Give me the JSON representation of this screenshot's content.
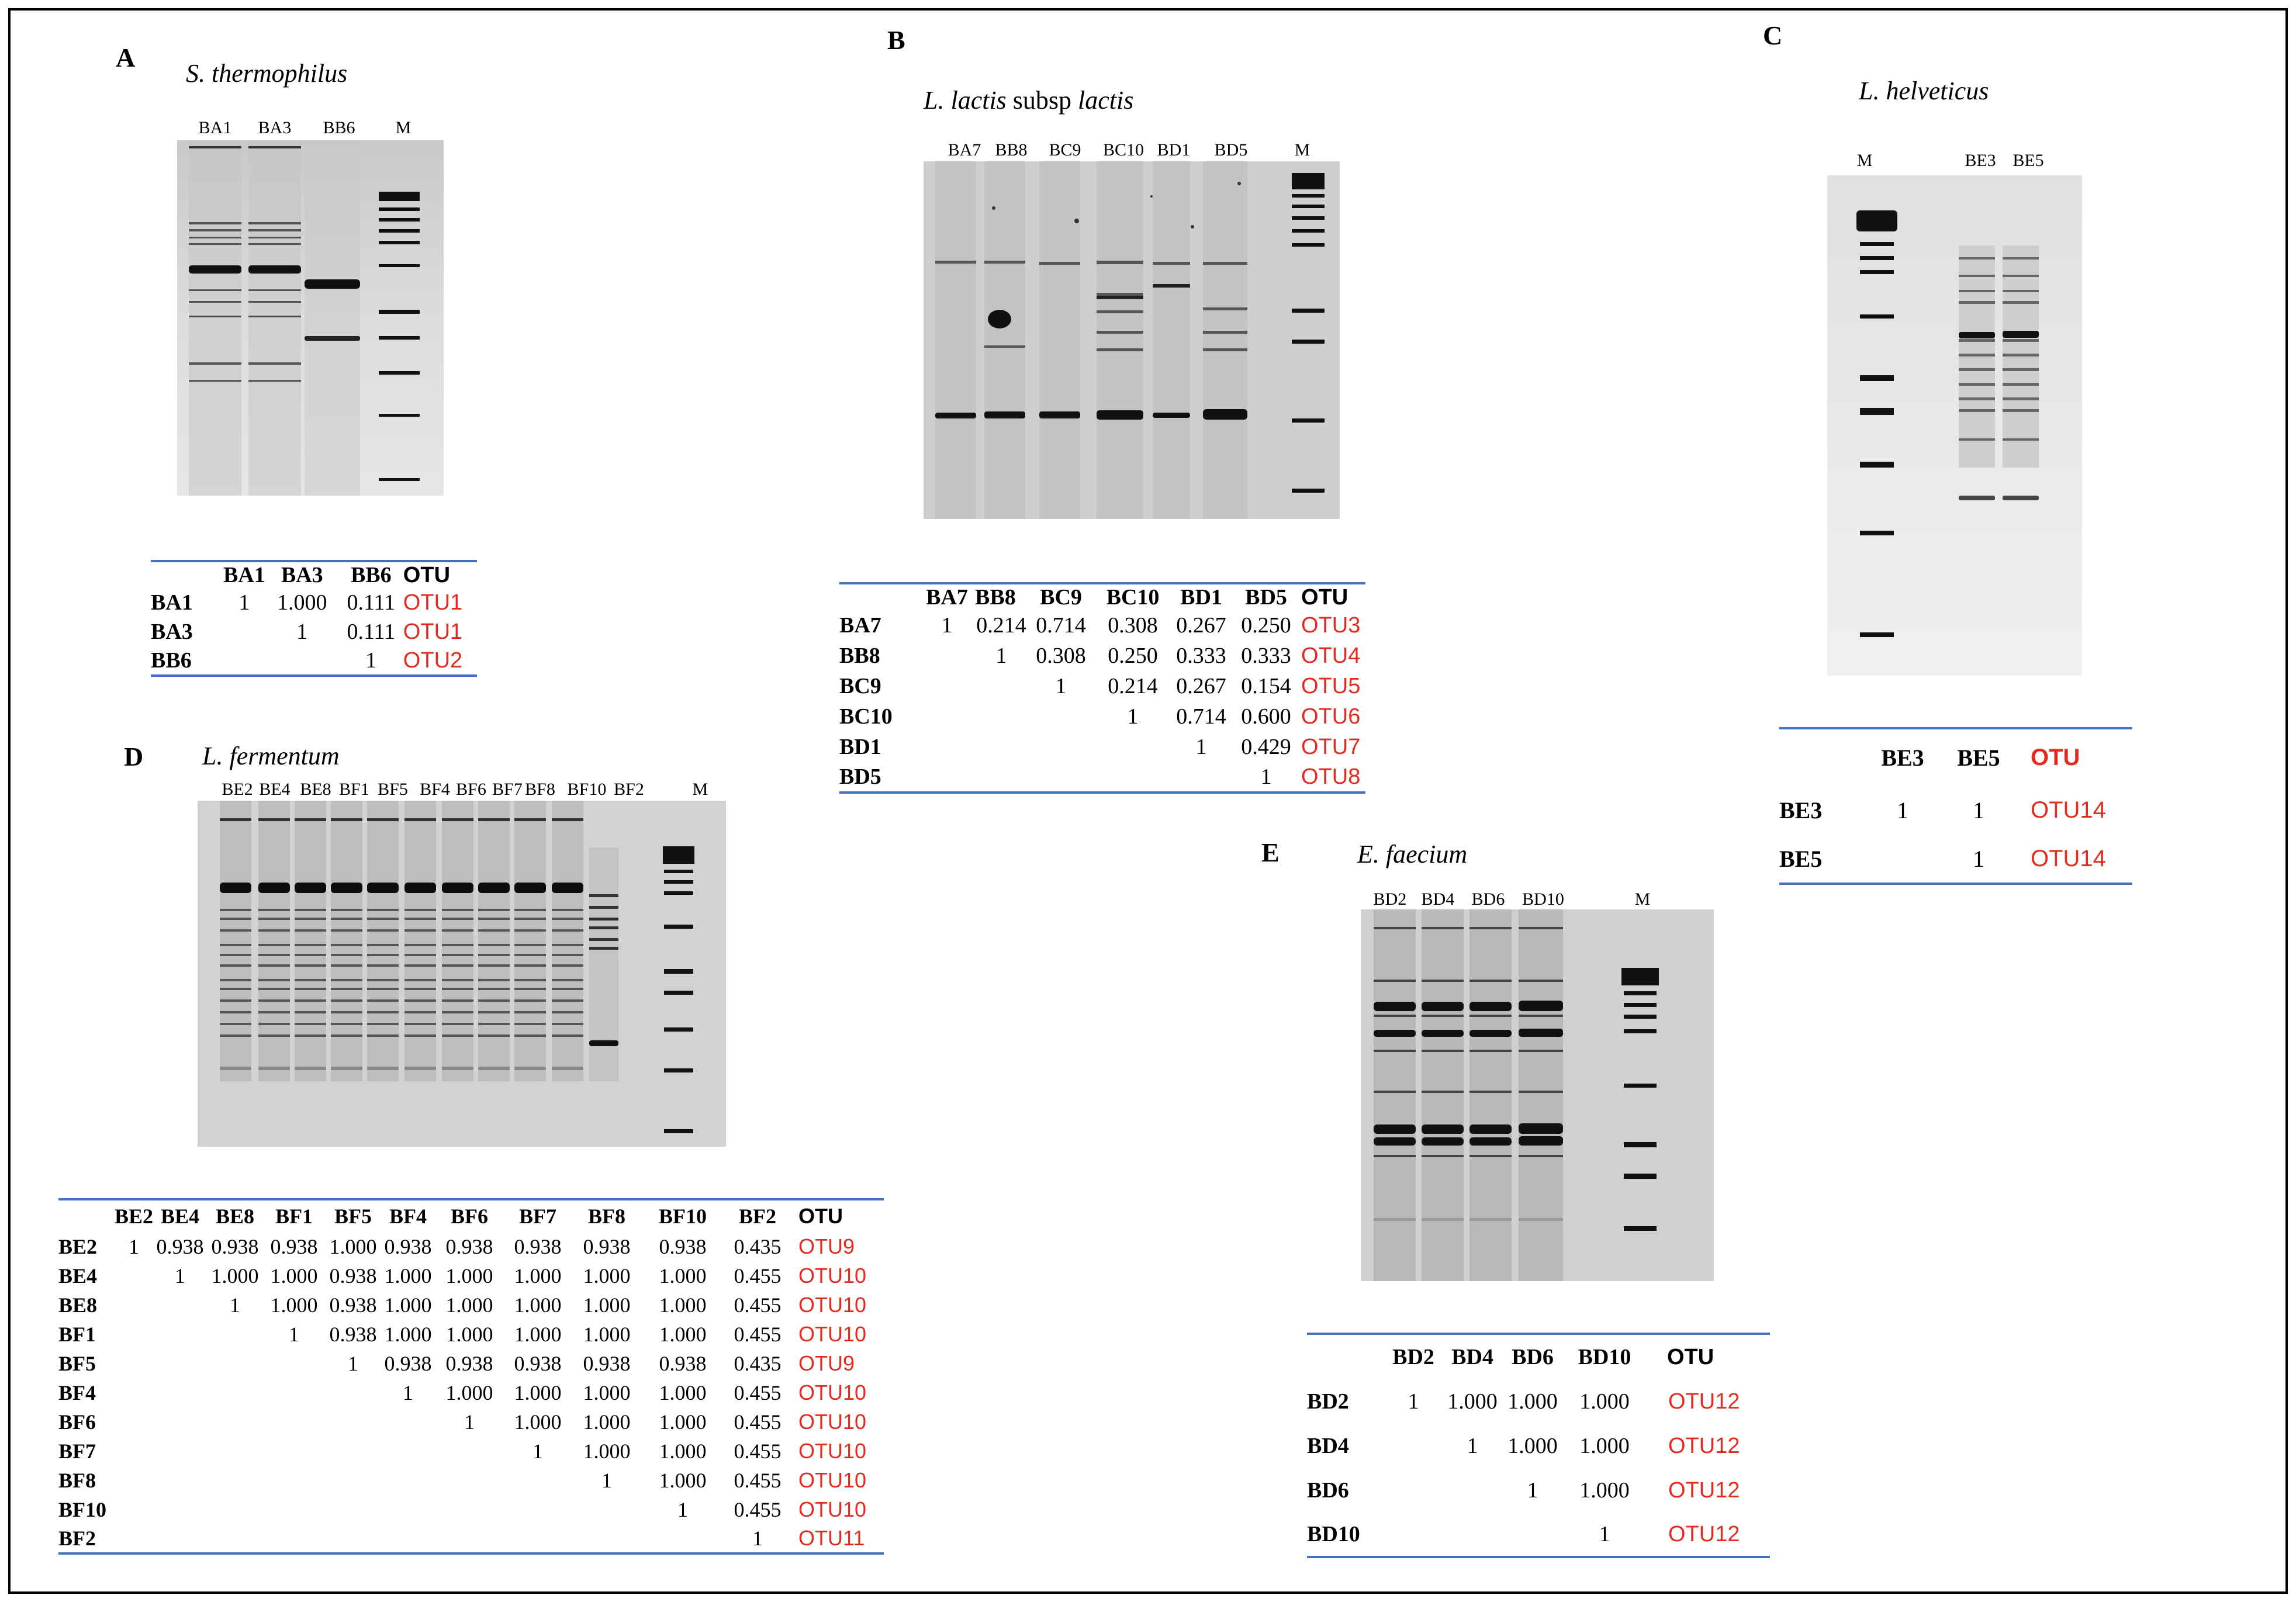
{
  "panels": {
    "A": {
      "label": "A",
      "species": "S. thermophilus",
      "lanes": [
        "BA1",
        "BA3",
        "BB6",
        "M"
      ],
      "table": {
        "cols": [
          "BA1",
          "BA3",
          "BB6",
          "OTU"
        ],
        "rows": [
          {
            "name": "BA1",
            "vals": [
              "1",
              "1.000",
              "0.111"
            ],
            "otu": "OTU1"
          },
          {
            "name": "BA3",
            "vals": [
              "",
              "1",
              "0.111"
            ],
            "otu": "OTU1"
          },
          {
            "name": "BB6",
            "vals": [
              "",
              "",
              "1"
            ],
            "otu": "OTU2"
          }
        ]
      }
    },
    "B": {
      "label": "B",
      "species_italic_1": "L. lactis",
      "species_plain": " subsp ",
      "species_italic_2": "lactis",
      "lanes": [
        "BA7",
        "BB8",
        "BC9",
        "BC10",
        "BD1",
        "BD5",
        "M"
      ],
      "table": {
        "cols": [
          "BA7",
          "BB8",
          "BC9",
          "BC10",
          "BD1",
          "BD5",
          "OTU"
        ],
        "rows": [
          {
            "name": "BA7",
            "vals": [
              "1",
              "0.214",
              "0.714",
              "0.308",
              "0.267",
              "0.250"
            ],
            "otu": "OTU3"
          },
          {
            "name": "BB8",
            "vals": [
              "",
              "1",
              "0.308",
              "0.250",
              "0.333",
              "0.333"
            ],
            "otu": "OTU4"
          },
          {
            "name": "BC9",
            "vals": [
              "",
              "",
              "1",
              "0.214",
              "0.267",
              "0.154"
            ],
            "otu": "OTU5"
          },
          {
            "name": "BC10",
            "vals": [
              "",
              "",
              "",
              "1",
              "0.714",
              "0.600"
            ],
            "otu": "OTU6"
          },
          {
            "name": "BD1",
            "vals": [
              "",
              "",
              "",
              "",
              "1",
              "0.429"
            ],
            "otu": "OTU7"
          },
          {
            "name": "BD5",
            "vals": [
              "",
              "",
              "",
              "",
              "",
              "1"
            ],
            "otu": "OTU8"
          }
        ]
      }
    },
    "C": {
      "label": "C",
      "species": "L. helveticus",
      "lanes": [
        "M",
        "BE3",
        "BE5"
      ],
      "table": {
        "cols": [
          "BE3",
          "BE5",
          "OTU"
        ],
        "rows": [
          {
            "name": "BE3",
            "vals": [
              "1",
              "1"
            ],
            "otu": "OTU14"
          },
          {
            "name": "BE5",
            "vals": [
              "",
              "1"
            ],
            "otu": "OTU14"
          }
        ]
      }
    },
    "D": {
      "label": "D",
      "species": "L. fermentum",
      "lanes": [
        "BE2",
        "BE4",
        "BE8",
        "BF1",
        "BF5",
        "BF4",
        "BF6",
        "BF7",
        "BF8",
        "BF10",
        "BF2",
        "M"
      ],
      "table": {
        "cols": [
          "BE2",
          "BE4",
          "BE8",
          "BF1",
          "BF5",
          "BF4",
          "BF6",
          "BF7",
          "BF8",
          "BF10",
          "BF2",
          "OTU"
        ],
        "rows": [
          {
            "name": "BE2",
            "vals": [
              "1",
              "0.938",
              "0.938",
              "0.938",
              "1.000",
              "0.938",
              "0.938",
              "0.938",
              "0.938",
              "0.938",
              "0.435"
            ],
            "otu": "OTU9"
          },
          {
            "name": "BE4",
            "vals": [
              "",
              "1",
              "1.000",
              "1.000",
              "0.938",
              "1.000",
              "1.000",
              "1.000",
              "1.000",
              "1.000",
              "0.455"
            ],
            "otu": "OTU10"
          },
          {
            "name": "BE8",
            "vals": [
              "",
              "",
              "1",
              "1.000",
              "0.938",
              "1.000",
              "1.000",
              "1.000",
              "1.000",
              "1.000",
              "0.455"
            ],
            "otu": "OTU10"
          },
          {
            "name": "BF1",
            "vals": [
              "",
              "",
              "",
              "1",
              "0.938",
              "1.000",
              "1.000",
              "1.000",
              "1.000",
              "1.000",
              "0.455"
            ],
            "otu": "OTU10"
          },
          {
            "name": "BF5",
            "vals": [
              "",
              "",
              "",
              "",
              "1",
              "0.938",
              "0.938",
              "0.938",
              "0.938",
              "0.938",
              "0.435"
            ],
            "otu": "OTU9"
          },
          {
            "name": "BF4",
            "vals": [
              "",
              "",
              "",
              "",
              "",
              "1",
              "1.000",
              "1.000",
              "1.000",
              "1.000",
              "0.455"
            ],
            "otu": "OTU10"
          },
          {
            "name": "BF6",
            "vals": [
              "",
              "",
              "",
              "",
              "",
              "",
              "1",
              "1.000",
              "1.000",
              "1.000",
              "0.455"
            ],
            "otu": "OTU10"
          },
          {
            "name": "BF7",
            "vals": [
              "",
              "",
              "",
              "",
              "",
              "",
              "",
              "1",
              "1.000",
              "1.000",
              "0.455"
            ],
            "otu": "OTU10"
          },
          {
            "name": "BF8",
            "vals": [
              "",
              "",
              "",
              "",
              "",
              "",
              "",
              "",
              "1",
              "1.000",
              "0.455"
            ],
            "otu": "OTU10"
          },
          {
            "name": "BF10",
            "vals": [
              "",
              "",
              "",
              "",
              "",
              "",
              "",
              "",
              "",
              "1",
              "0.455"
            ],
            "otu": "OTU10"
          },
          {
            "name": "BF2",
            "vals": [
              "",
              "",
              "",
              "",
              "",
              "",
              "",
              "",
              "",
              "",
              "1"
            ],
            "otu": "OTU11"
          }
        ]
      }
    },
    "E": {
      "label": "E",
      "species": "E. faecium",
      "lanes": [
        "BD2",
        "BD4",
        "BD6",
        "BD10",
        "M"
      ],
      "table": {
        "cols": [
          "BD2",
          "BD4",
          "BD6",
          "BD10",
          "OTU"
        ],
        "rows": [
          {
            "name": "BD2",
            "vals": [
              "1",
              "1.000",
              "1.000",
              "1.000"
            ],
            "otu": "OTU12"
          },
          {
            "name": "BD4",
            "vals": [
              "",
              "1",
              "1.000",
              "1.000"
            ],
            "otu": "OTU12"
          },
          {
            "name": "BD6",
            "vals": [
              "",
              "",
              "1",
              "1.000"
            ],
            "otu": "OTU12"
          },
          {
            "name": "BD10",
            "vals": [
              "",
              "",
              "",
              "1"
            ],
            "otu": "OTU12"
          }
        ]
      }
    }
  },
  "colors": {
    "otu_text": "#e32b20",
    "table_rule": "#4472c4",
    "gel_bg": "#d6d6d6",
    "band": "#1a1a1a"
  }
}
